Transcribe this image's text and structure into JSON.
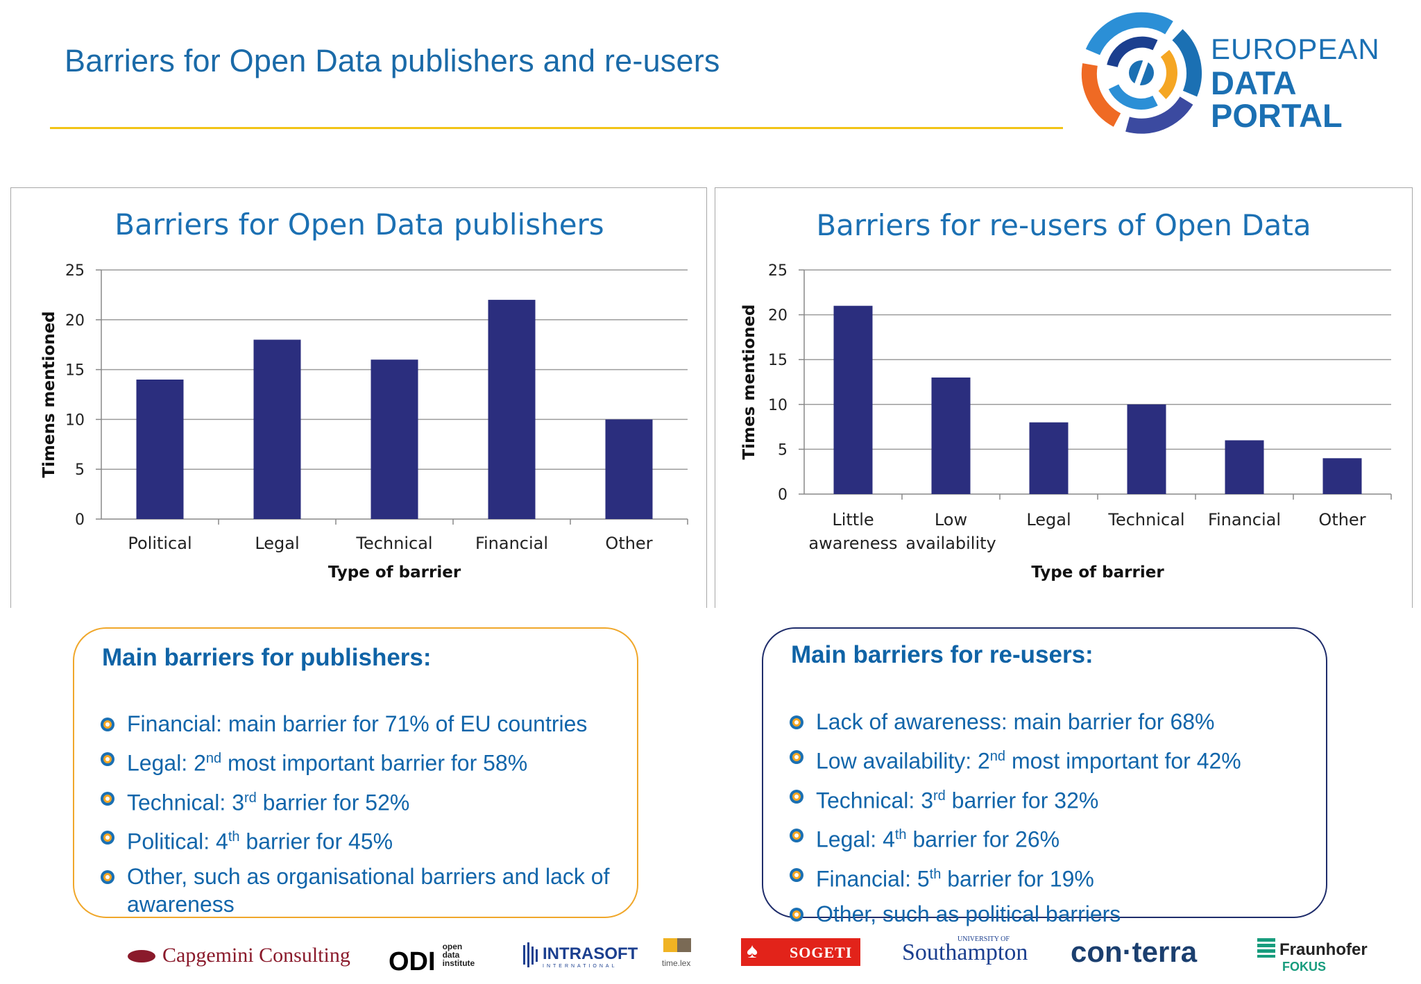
{
  "slide": {
    "title": "Barriers for Open Data publishers and re-users"
  },
  "logo": {
    "line1": "EUROPEAN",
    "line2": "DATA PORTAL"
  },
  "chart_data": [
    {
      "type": "bar",
      "title": "Barriers for Open Data publishers",
      "xlabel": "Type of barrier",
      "ylabel": "Timens mentioned",
      "categories": [
        "Political",
        "Legal",
        "Technical",
        "Financial",
        "Other"
      ],
      "values": [
        14,
        18,
        16,
        22,
        10
      ],
      "ylim": [
        0,
        25
      ],
      "yticks": [
        0,
        5,
        10,
        15,
        20,
        25
      ],
      "grid": true,
      "color": "#2b2e7e"
    },
    {
      "type": "bar",
      "title": "Barriers for re-users of Open Data",
      "xlabel": "Type of barrier",
      "ylabel": "Times mentioned",
      "categories": [
        [
          "Little",
          "awareness"
        ],
        [
          "Low",
          "availability"
        ],
        [
          "Legal"
        ],
        [
          "Technical"
        ],
        [
          "Financial"
        ],
        [
          "Other"
        ]
      ],
      "values": [
        21,
        13,
        8,
        10,
        6,
        4
      ],
      "ylim": [
        0,
        25
      ],
      "yticks": [
        0,
        5,
        10,
        15,
        20,
        25
      ],
      "grid": true,
      "color": "#2b2e7e"
    }
  ],
  "publishers_box": {
    "heading": "Main barriers for publishers:",
    "items": [
      {
        "pre": "Financial: main barrier for 71% of EU countries",
        "sup": "",
        "post": ""
      },
      {
        "pre": "Legal: 2",
        "sup": "nd",
        "post": " most important barrier for 58%"
      },
      {
        "pre": "Technical: 3",
        "sup": "rd",
        "post": " barrier for 52%"
      },
      {
        "pre": "Political: 4",
        "sup": "th",
        "post": " barrier for 45%"
      },
      {
        "pre": "Other, such as organisational barriers and lack of awareness",
        "sup": "",
        "post": ""
      }
    ]
  },
  "reusers_box": {
    "heading": "Main barriers for re-users:",
    "items": [
      {
        "pre": "Lack of awareness: main barrier for 68%",
        "sup": "",
        "post": ""
      },
      {
        "pre": "Low availability: 2",
        "sup": "nd",
        "post": " most important for 42%"
      },
      {
        "pre": "Technical: 3",
        "sup": "rd",
        "post": " barrier for 32%"
      },
      {
        "pre": "Legal: 4",
        "sup": "th",
        "post": " barrier for 26%"
      },
      {
        "pre": "Financial: 5",
        "sup": "th",
        "post": " barrier for 19%"
      },
      {
        "pre": "Other, such as political barriers",
        "sup": "",
        "post": ""
      }
    ]
  },
  "partners": {
    "capgemini": "Capgemini Consulting",
    "odi_mark": "ODI",
    "odi_text": [
      "open",
      "data",
      "institute"
    ],
    "intrasoft": "INTRASOFT",
    "intrasoft_sub": "INTERNATIONAL",
    "timelex": "time.lex",
    "sogeti": "SOGETI",
    "southampton_small": "UNIVERSITY OF",
    "southampton": "Southampton",
    "conterra": "con·terra",
    "fraunhofer": "Fraunhofer",
    "fokus": "FOKUS",
    "colors": {
      "capgemini": "#8a1a2b",
      "sogeti": "#e2231a",
      "fraunhofer_green": "#179c7d",
      "intrasoft": "#1b3f8f"
    }
  }
}
